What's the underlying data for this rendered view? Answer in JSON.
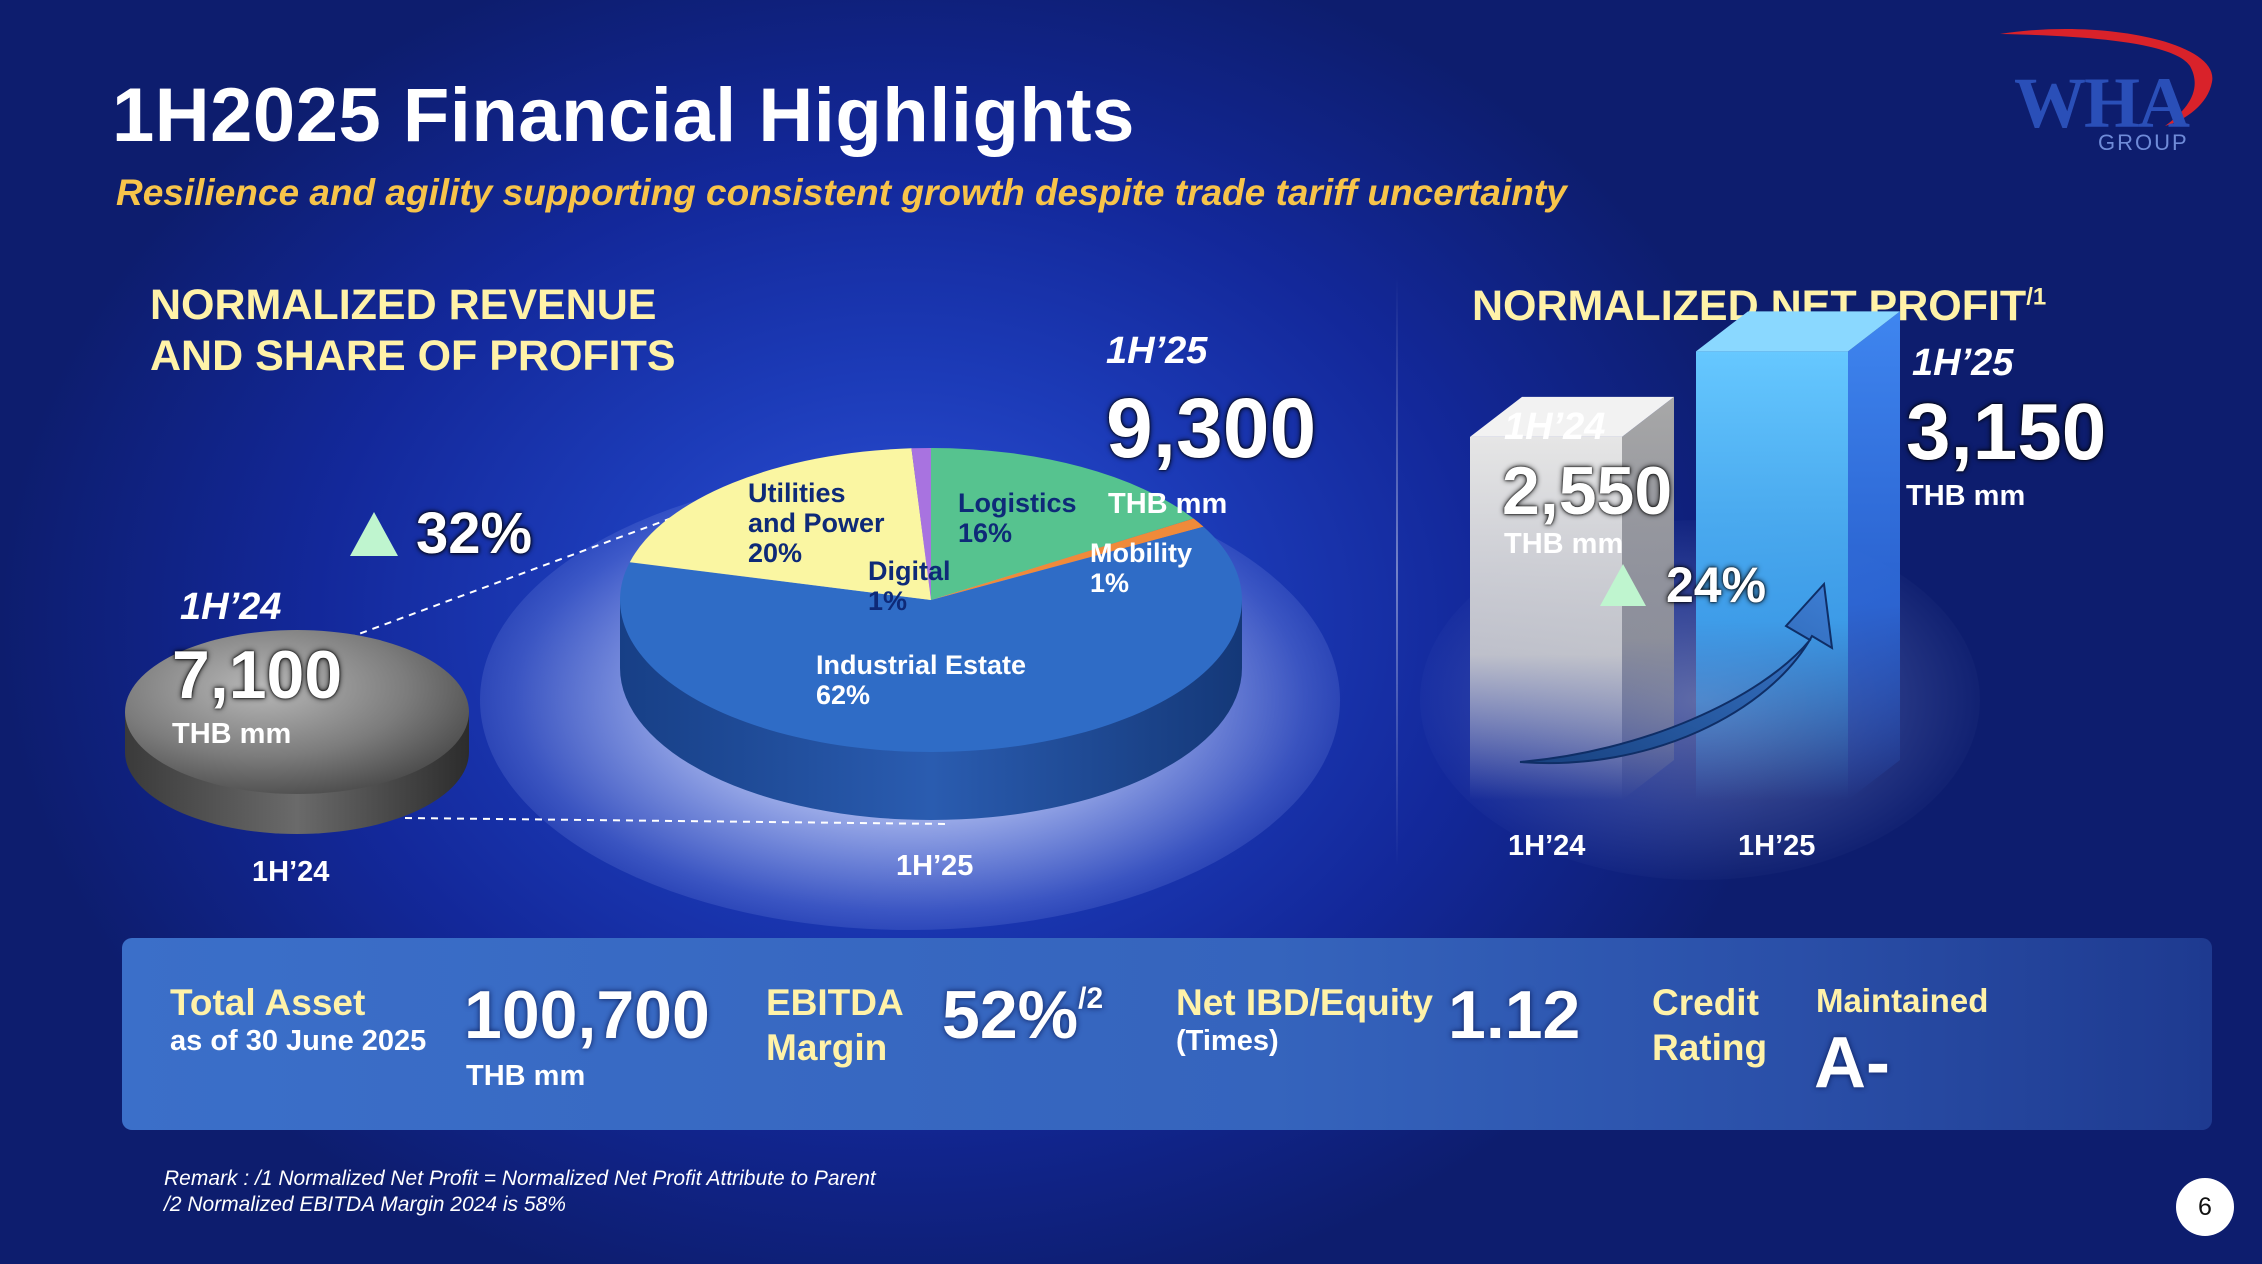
{
  "header": {
    "title": "1H2025 Financial Highlights",
    "subtitle": "Resilience and agility supporting consistent growth despite trade tariff uncertainty"
  },
  "logo": {
    "name": "WHA",
    "group": "GROUP",
    "colors": {
      "text": "#2a4fb8",
      "swoosh": "#d9222a"
    }
  },
  "revenue": {
    "title_line1": "NORMALIZED REVENUE",
    "title_line2": "AND SHARE OF PROFITS",
    "growth": "32%",
    "prev": {
      "period": "1H’24",
      "value": "7,100",
      "unit": "THB mm"
    },
    "curr": {
      "period": "1H’25",
      "value": "9,300",
      "unit": "THB mm"
    }
  },
  "net_profit": {
    "title": "NORMALIZED NET PROFIT",
    "title_sup": "/1",
    "growth": "24%",
    "prev": {
      "period": "1H’24",
      "value": "2,550",
      "unit": "THB mm"
    },
    "curr": {
      "period": "1H’25",
      "value": "3,150",
      "unit": "THB mm"
    }
  },
  "chart_data": [
    {
      "type": "pie",
      "title": "NORMALIZED REVENUE AND SHARE OF PROFITS",
      "categories": [
        "1H’24",
        "1H’25"
      ],
      "totals": [
        7100,
        9300
      ],
      "unit": "THB mm",
      "slices": [
        {
          "name": "Industrial Estate",
          "line1": "Industrial Estate",
          "line2": "",
          "pct_label": "62%",
          "value": 62,
          "color": "#2f6cc6"
        },
        {
          "name": "Utilities and Power",
          "line1": "Utilities",
          "line2": "and Power",
          "pct_label": "20%",
          "value": 20,
          "color": "#faf6a2"
        },
        {
          "name": "Digital",
          "line1": "Digital",
          "line2": "",
          "pct_label": "1%",
          "value": 1,
          "color": "#a873e0"
        },
        {
          "name": "Logistics",
          "line1": "Logistics",
          "line2": "",
          "pct_label": "16%",
          "value": 16,
          "color": "#56c38f"
        },
        {
          "name": "Mobility",
          "line1": "Mobility",
          "line2": "",
          "pct_label": "1%",
          "value": 1,
          "color": "#f08a3a"
        }
      ]
    },
    {
      "type": "bar",
      "title": "NORMALIZED NET PROFIT",
      "categories": [
        "1H’24",
        "1H’25"
      ],
      "values": [
        2550,
        3150
      ],
      "unit": "THB mm"
    }
  ],
  "bottom": {
    "total_asset": {
      "label": "Total Asset",
      "sub": "as of 30 June 2025",
      "value": "100,700",
      "unit": "THB mm"
    },
    "ebitda": {
      "label1": "EBITDA",
      "label2": "Margin",
      "value": "52%",
      "sup": "/2"
    },
    "ibd": {
      "label": "Net IBD/Equity",
      "sub": "(Times)",
      "value": "1.12"
    },
    "credit": {
      "label1": "Credit",
      "label2": "Rating",
      "status": "Maintained",
      "value": "A-"
    }
  },
  "remarks": {
    "line1": "Remark : /1 Normalized Net Profit = Normalized Net Profit Attribute to Parent",
    "line2": "/2 Normalized EBITDA Margin 2024 is 58%"
  },
  "page_number": "6"
}
